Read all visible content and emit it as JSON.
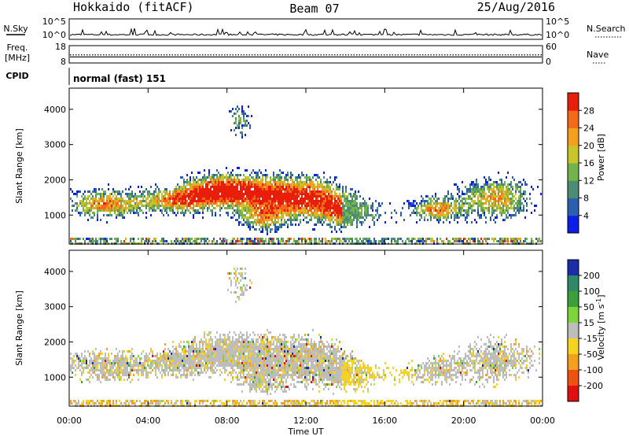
{
  "header": {
    "station": "Hokkaido (fitACF)",
    "beam": "Beam 07",
    "date": "25/Aug/2016"
  },
  "noise_panel": {
    "left_label": "N.Sky",
    "right_label": "N.Search",
    "left_ticks": [
      "10^5",
      "10^0"
    ],
    "right_ticks": [
      "10^5",
      "10^0"
    ]
  },
  "freq_panel": {
    "left_label_1": "Freq.",
    "left_label_2": "[MHz]",
    "right_label": "Nave",
    "left_ticks": [
      "18",
      "8"
    ],
    "right_ticks": [
      "60",
      "0"
    ],
    "freq_mhz": 11.5,
    "nave": 28
  },
  "cpid_panel": {
    "label": "CPID",
    "mode": "normal (fast) 151"
  },
  "chart_data": [
    {
      "type": "heatmap",
      "title": "",
      "ylabel": "Slant Range [km]",
      "xlabel": "",
      "ylim": [
        180,
        4600
      ],
      "y_ticks": [
        "1000",
        "2000",
        "3000",
        "4000"
      ],
      "colorbar_label": "Power [dB]",
      "colorbar_ticks": [
        "4",
        "8",
        "12",
        "16",
        "20",
        "24",
        "28"
      ],
      "colors": [
        "#0a1ee8",
        "#2a5fb0",
        "#4b8c75",
        "#72b34a",
        "#c9c42a",
        "#f2a01e",
        "#f26a1a",
        "#e81e0a"
      ]
    },
    {
      "type": "heatmap",
      "title": "",
      "ylabel": "Slant Range [km]",
      "xlabel": "Time UT",
      "ylim": [
        180,
        4600
      ],
      "y_ticks": [
        "1000",
        "2000",
        "3000",
        "4000"
      ],
      "x_ticks": [
        "00:00",
        "04:00",
        "08:00",
        "12:00",
        "16:00",
        "20:00",
        "00:00"
      ],
      "colorbar_label": "Velocity [m s-1]",
      "colorbar_label_text": "Velocity [m s",
      "colorbar_label_sup": "-1",
      "colorbar_label_end": "]",
      "colorbar_ticks": [
        "200",
        "100",
        "50",
        "15",
        "-15",
        "-50",
        "-100",
        "-200"
      ],
      "colors": [
        "#1a2ea8",
        "#2f8a68",
        "#3aa03a",
        "#7cd63a",
        "#bdbdbd",
        "#f7d21e",
        "#f2a01e",
        "#f05010",
        "#e01010"
      ]
    }
  ]
}
